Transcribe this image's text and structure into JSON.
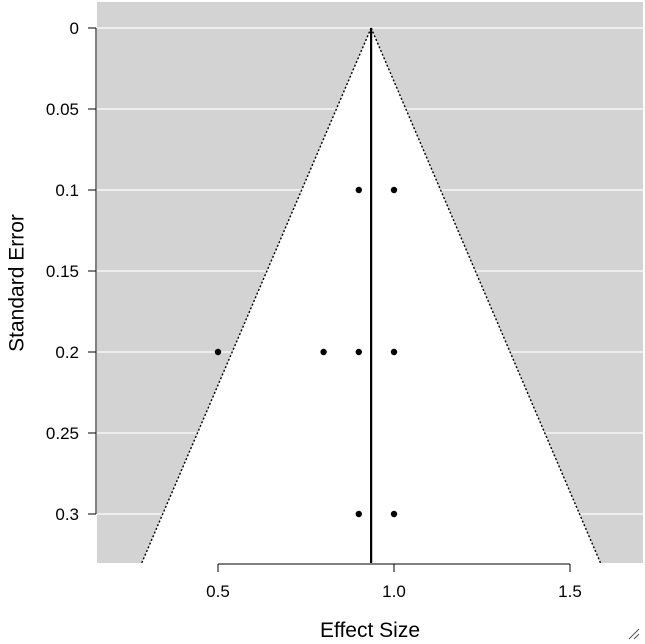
{
  "chart_data": {
    "type": "scatter",
    "subtype": "funnel plot",
    "title": "",
    "xlabel": "Effect Size",
    "ylabel": "Standard Error",
    "xlim": [
      0.1,
      1.65
    ],
    "ylim": [
      0.3325,
      0
    ],
    "y_axis_reversed": true,
    "x_ticks": [
      0.5,
      1.0,
      1.5
    ],
    "x_tick_labels": [
      "0.5",
      "1.0",
      "1.5"
    ],
    "y_ticks": [
      0,
      0.05,
      0.1,
      0.15,
      0.2,
      0.25,
      0.3
    ],
    "y_tick_labels": [
      "0",
      "0.05",
      "0.1",
      "0.15",
      "0.2",
      "0.25",
      "0.3"
    ],
    "grid": "horizontal",
    "points": [
      {
        "x": 0.9,
        "y": 0.1
      },
      {
        "x": 1.0,
        "y": 0.1
      },
      {
        "x": 0.5,
        "y": 0.2
      },
      {
        "x": 0.8,
        "y": 0.2
      },
      {
        "x": 0.9,
        "y": 0.2
      },
      {
        "x": 1.0,
        "y": 0.2
      },
      {
        "x": 0.9,
        "y": 0.3
      },
      {
        "x": 1.0,
        "y": 0.3
      }
    ],
    "pooled_estimate": 0.935,
    "funnel_z": 1.96,
    "colors": {
      "background": "#d3d3d3",
      "funnel_fill": "#ffffff",
      "gridline": "#ffffff",
      "points": "#000000",
      "reference_line": "#000000",
      "funnel_border": "#000000"
    }
  }
}
